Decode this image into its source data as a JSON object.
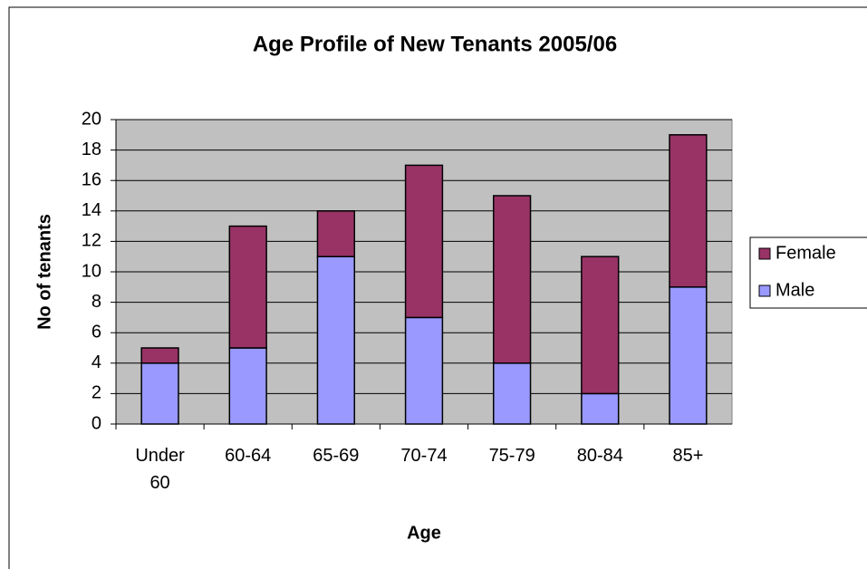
{
  "chart_data": {
    "type": "stacked_bar",
    "title": "Age Profile of New Tenants 2005/06",
    "x_label": "Age",
    "y_label": "No of tenants",
    "categories": [
      "Under 60",
      "60-64",
      "65-69",
      "70-74",
      "75-79",
      "80-84",
      "85+"
    ],
    "series": [
      {
        "name": "Male",
        "color": "#9999ff",
        "values": [
          4,
          5,
          11,
          7,
          4,
          2,
          9
        ]
      },
      {
        "name": "Female",
        "color": "#993366",
        "values": [
          1,
          8,
          3,
          10,
          11,
          9,
          10
        ]
      }
    ],
    "ylim": [
      0,
      20
    ],
    "yticks": [
      0,
      2,
      4,
      6,
      8,
      10,
      12,
      14,
      16,
      18,
      20
    ],
    "grid": true,
    "plot_background": "#c0c0c0",
    "legend": "right"
  }
}
